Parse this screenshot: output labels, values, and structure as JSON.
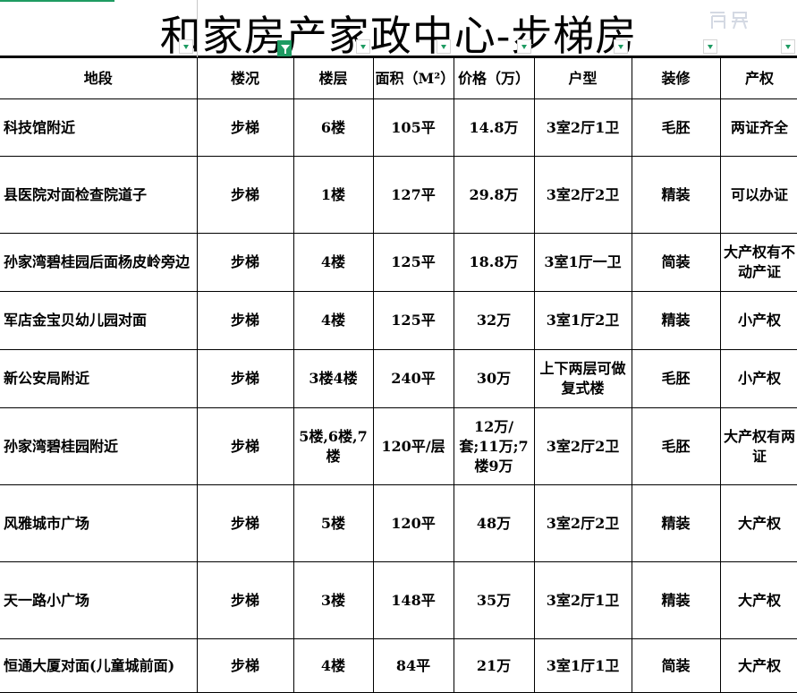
{
  "title": "和家房产家政中心-步梯房",
  "columns": [
    "地段",
    "楼况",
    "楼层",
    "面积（M²）",
    "价格（万）",
    "户型",
    "装修",
    "产权"
  ],
  "rows": [
    [
      "科技馆附近",
      "步梯",
      "6楼",
      "105平",
      "14.8万",
      "3室2厅1卫",
      "毛胚",
      "两证齐全"
    ],
    [
      "县医院对面检查院道子",
      "步梯",
      "1楼",
      "127平",
      "29.8万",
      "3室2厅2卫",
      "精装",
      "可以办证"
    ],
    [
      "孙家湾碧桂园后面杨皮岭旁边",
      "步梯",
      "4楼",
      "125平",
      "18.8万",
      "3室1厅一卫",
      "简装",
      "大产权有不动产证"
    ],
    [
      "军店金宝贝幼儿园对面",
      "步梯",
      "4楼",
      "125平",
      "32万",
      "3室1厅2卫",
      "精装",
      "小产权"
    ],
    [
      "新公安局附近",
      "步梯",
      "3楼4楼",
      "240平",
      "30万",
      "上下两层可做复式楼",
      "毛胚",
      "小产权"
    ],
    [
      "孙家湾碧桂园附近",
      "步梯",
      "5楼,6楼,7楼",
      "120平/层",
      "12万/套;11万;7楼9万",
      "3室2厅2卫",
      "毛胚",
      "大产权有两证"
    ],
    [
      "风雅城市广场",
      "步梯",
      "5楼",
      "120平",
      "48万",
      "3室2厅2卫",
      "精装",
      "大产权"
    ],
    [
      "天一路小广场",
      "步梯",
      "3楼",
      "148平",
      "35万",
      "3室2厅1卫",
      "精装",
      "大产权"
    ],
    [
      "恒通大厦对面(儿童城前面)",
      "步梯",
      "4楼",
      "84平",
      "21万",
      "3室1厅1卫",
      "简装",
      "大产权"
    ]
  ],
  "watermark": "房屋",
  "filter_icon": "dropdown-triangle-icon",
  "accent": "#1e9b62"
}
